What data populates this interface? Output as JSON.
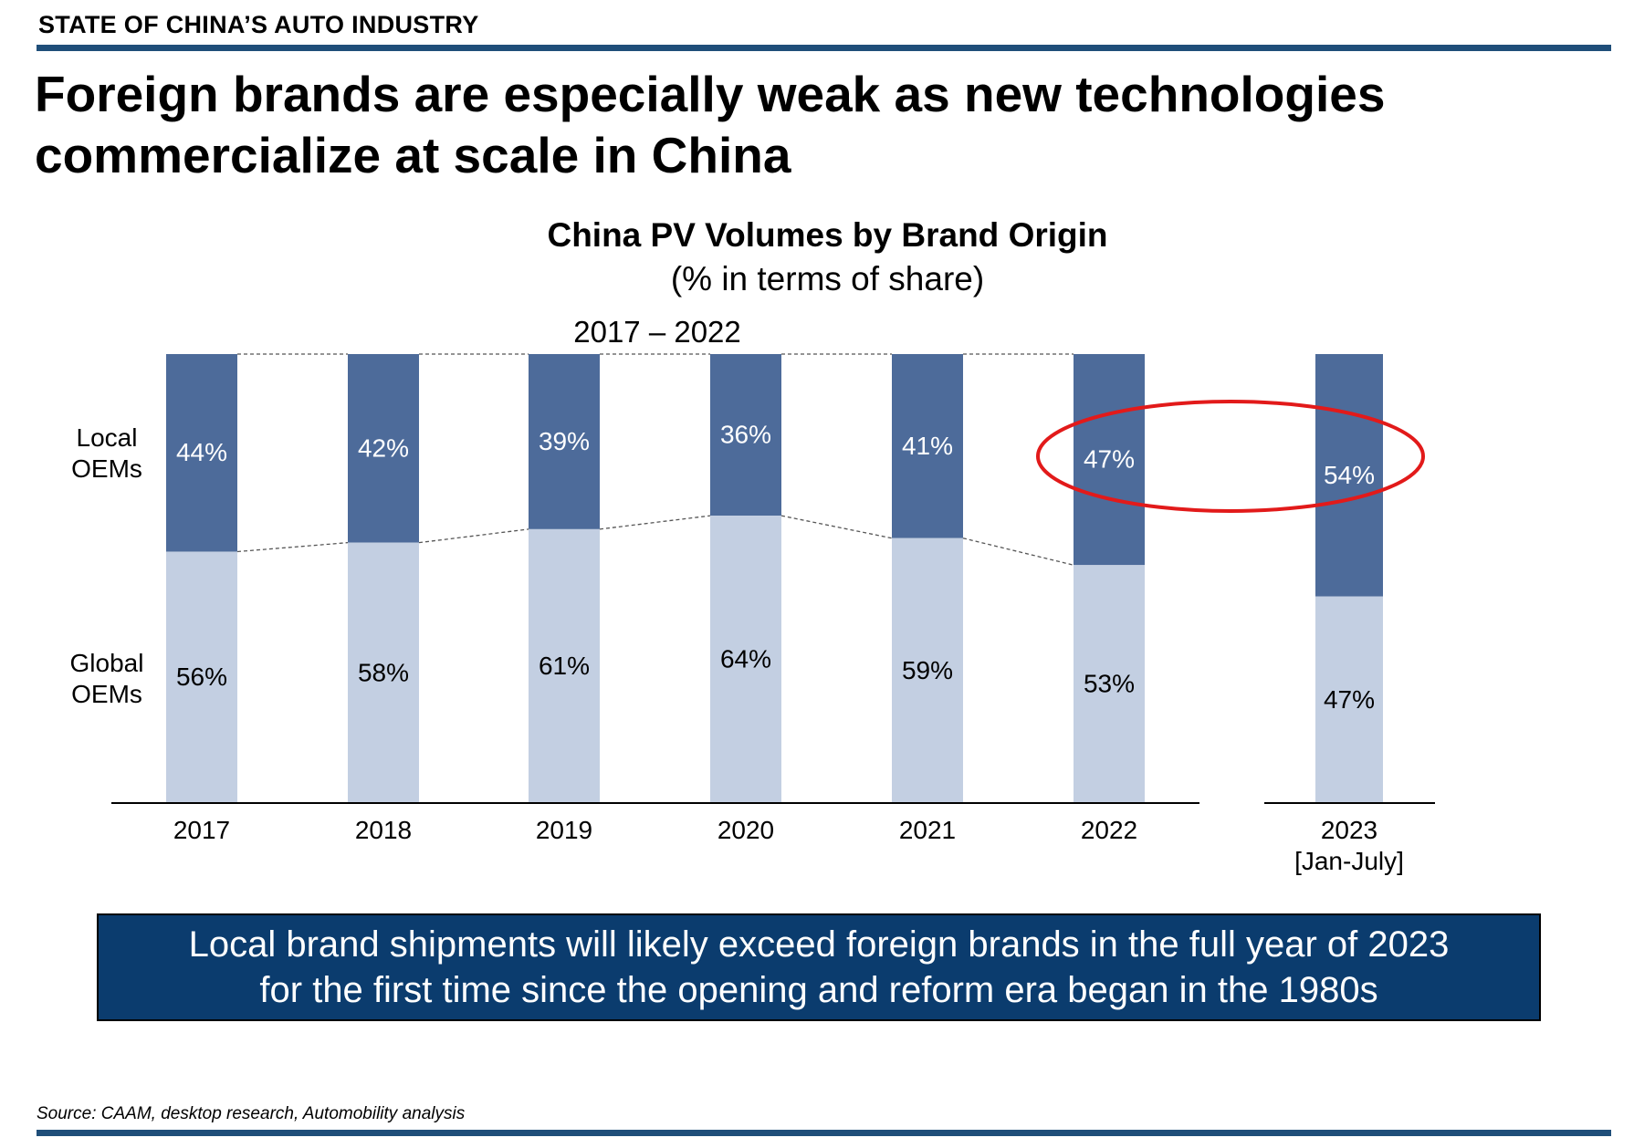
{
  "header": {
    "section_label": "STATE OF CHINA’S AUTO INDUSTRY"
  },
  "headline": {
    "line1": "Foreign brands are especially weak as new technologies",
    "line2": "commercialize at scale in China"
  },
  "chart_data": {
    "type": "bar",
    "stacked": true,
    "title": "China PV Volumes by Brand Origin",
    "subtitle": "(% in terms of share)",
    "group_label": "2017 – 2022",
    "categories": [
      {
        "label": "2017",
        "sublabel": ""
      },
      {
        "label": "2018",
        "sublabel": ""
      },
      {
        "label": "2019",
        "sublabel": ""
      },
      {
        "label": "2020",
        "sublabel": ""
      },
      {
        "label": "2021",
        "sublabel": ""
      },
      {
        "label": "2022",
        "sublabel": ""
      },
      {
        "label": "2023",
        "sublabel": "[Jan-July]"
      }
    ],
    "series": [
      {
        "name_lines": [
          "Local",
          "OEMs"
        ],
        "color": "#4d6b9a",
        "text_color": "#ffffff",
        "values": [
          44,
          42,
          39,
          36,
          41,
          47,
          54
        ],
        "labels": [
          "44%",
          "42%",
          "39%",
          "36%",
          "41%",
          "47%",
          "54%"
        ]
      },
      {
        "name_lines": [
          "Global",
          "OEMs"
        ],
        "color": "#c3cfe2",
        "text_color": "#000000",
        "values": [
          56,
          58,
          61,
          64,
          59,
          53,
          47
        ],
        "labels": [
          "56%",
          "58%",
          "61%",
          "64%",
          "59%",
          "53%",
          "47%"
        ]
      }
    ],
    "ylim": [
      0,
      100
    ],
    "highlight": {
      "categories": [
        "2022",
        "2023"
      ],
      "series": "Local OEMs",
      "color": "#e21a1a"
    },
    "connector_lines": true
  },
  "callout": {
    "line1": "Local brand shipments will likely exceed foreign brands in the full year of 2023",
    "line2": "for the first time since the opening and reform era began in the 1980s",
    "background": "#0b3c6e"
  },
  "footer": {
    "source": "Source: CAAM, desktop research, Automobility analysis"
  },
  "colors": {
    "accent": "#1f4e79"
  }
}
